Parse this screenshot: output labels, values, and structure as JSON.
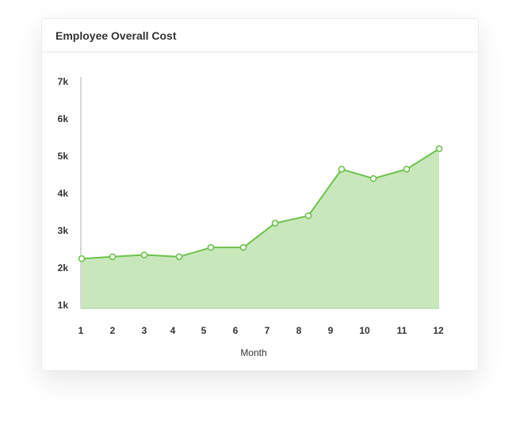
{
  "card": {
    "title": "Employee Overall Cost"
  },
  "colors": {
    "line": "#6cc24a",
    "area": "#c8e8bc",
    "axis": "#cccccc",
    "point_fill": "#ffffff"
  },
  "chart_data": {
    "type": "area",
    "title": "Employee Overall Cost",
    "xlabel": "Month",
    "ylabel": "",
    "x": [
      "1",
      "2",
      "3",
      "4",
      "5",
      "6",
      "7",
      "8",
      "9",
      "10",
      "11",
      "12"
    ],
    "y_ticks": [
      "1k",
      "2k",
      "3k",
      "4k",
      "5k",
      "6k",
      "7k"
    ],
    "y_tick_values": [
      1000,
      2000,
      3000,
      4000,
      5000,
      6000,
      7000
    ],
    "ylim": [
      1000,
      7000
    ],
    "grid": false,
    "legend": "none",
    "series": [
      {
        "values": [
          2250,
          2300,
          2350,
          2300,
          2550,
          2550,
          3200,
          3400,
          4650,
          4400,
          4650,
          5200
        ]
      }
    ]
  }
}
